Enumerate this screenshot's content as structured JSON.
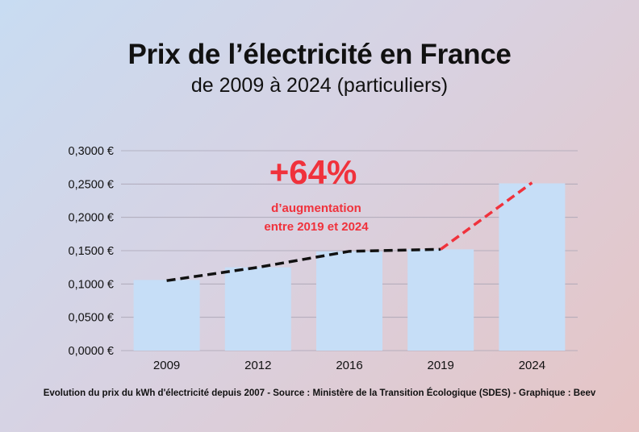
{
  "title": "Prix de l’électricité en France",
  "subtitle": "de 2009 à 2024 (particuliers)",
  "footer": "Evolution du prix du kWh d'électricité depuis 2007 - Source : Ministère de la Transition Écologique (SDES) - Graphique : Beev",
  "colors": {
    "bar": "#c6def7",
    "grid": "#a9a4b4",
    "trend_line": "#111111",
    "highlight": "#f0323c",
    "text": "#111111"
  },
  "chart_data": {
    "type": "bar",
    "categories": [
      "2009",
      "2012",
      "2016",
      "2019",
      "2024"
    ],
    "values": [
      0.106,
      0.125,
      0.149,
      0.152,
      0.251
    ],
    "ylim": [
      0,
      0.3
    ],
    "yticks": [
      0,
      0.05,
      0.1,
      0.15,
      0.2,
      0.25,
      0.3
    ],
    "ytick_labels": [
      "0,0000 €",
      "0,0500 €",
      "0,1000 €",
      "0,1500 €",
      "0,2000 €",
      "0,2500 €",
      "0,3000 €"
    ],
    "grid": true,
    "trend": {
      "style": "dashed",
      "points": [
        [
          0,
          0.105
        ],
        [
          1,
          0.125
        ],
        [
          2,
          0.149
        ],
        [
          3,
          0.152
        ]
      ],
      "highlight_points": [
        [
          3,
          0.152
        ],
        [
          4,
          0.252
        ]
      ]
    },
    "annotation": {
      "value": "+64%",
      "line1": "d’augmentation",
      "line2": "entre 2019 et 2024"
    }
  }
}
